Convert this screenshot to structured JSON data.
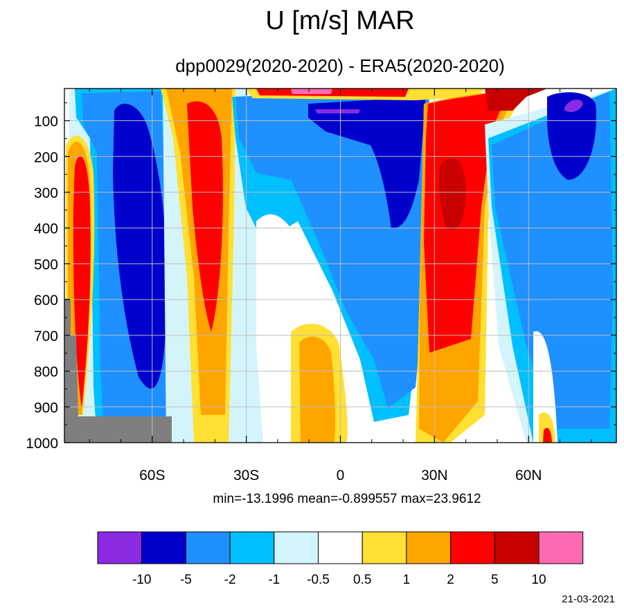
{
  "chart_data": {
    "type": "heatmap",
    "title": "U [m/s] MAR",
    "subtitle": "dpp0029(2020-2020) - ERA5(2020-2020)",
    "stats": "min=-13.1996   mean=-0.899557   max=23.9612",
    "date": "21-03-2021",
    "x_ticks": [
      {
        "label": "60S",
        "value": -60
      },
      {
        "label": "30S",
        "value": -30
      },
      {
        "label": "0",
        "value": 0
      },
      {
        "label": "30N",
        "value": 30
      },
      {
        "label": "60N",
        "value": 60
      }
    ],
    "y_ticks": [
      {
        "label": "100",
        "value": 100
      },
      {
        "label": "200",
        "value": 200
      },
      {
        "label": "300",
        "value": 300
      },
      {
        "label": "400",
        "value": 400
      },
      {
        "label": "500",
        "value": 500
      },
      {
        "label": "600",
        "value": 600
      },
      {
        "label": "700",
        "value": 700
      },
      {
        "label": "800",
        "value": 800
      },
      {
        "label": "900",
        "value": 900
      },
      {
        "label": "1000",
        "value": 1000
      }
    ],
    "xlim": [
      -88,
      88
    ],
    "ylim": [
      10,
      1000
    ],
    "y_inverted": true,
    "grid": true,
    "legend": "bottom",
    "levels": [
      "-10",
      "-5",
      "-2",
      "-1",
      "-0.5",
      "0.5",
      "1",
      "2",
      "5",
      "10"
    ],
    "colors": [
      "#8a2be2",
      "#0000cd",
      "#1e90ff",
      "#00bfff",
      "#d4f4fb",
      "#ffffff",
      "#ffe033",
      "#ffa500",
      "#ff0000",
      "#c80000",
      "#ff69b4"
    ],
    "missing_color": "#7f7f7f"
  }
}
